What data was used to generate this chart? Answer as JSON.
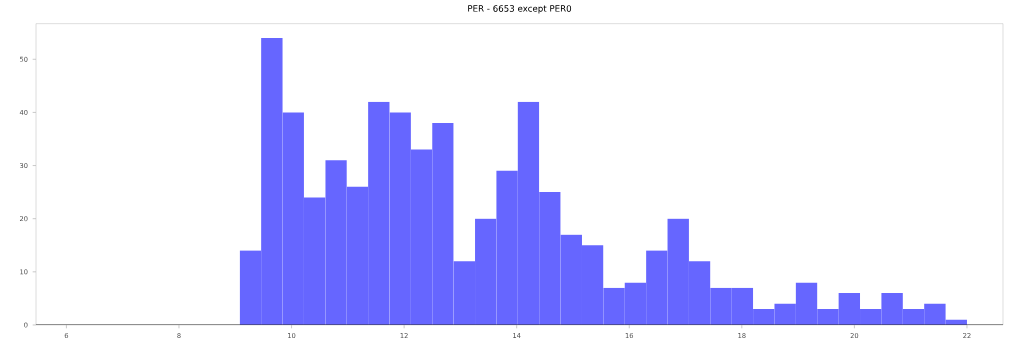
{
  "chart_data": {
    "type": "histogram",
    "title": "PER - 6653 except PER0",
    "bins": [
      9.08,
      9.46,
      9.84,
      10.22,
      10.6,
      10.98,
      11.36,
      11.74,
      12.12,
      12.5,
      12.88,
      13.26,
      13.64,
      14.02,
      14.4,
      14.78,
      15.16,
      15.54,
      15.92,
      16.3,
      16.68,
      17.06,
      17.44,
      17.82,
      18.2,
      18.58,
      18.96,
      19.34,
      19.72,
      20.1,
      20.48,
      20.86,
      21.24,
      21.62,
      22.0
    ],
    "values": [
      14,
      54,
      40,
      24,
      31,
      26,
      42,
      40,
      33,
      38,
      12,
      20,
      29,
      42,
      25,
      17,
      15,
      7,
      8,
      14,
      20,
      12,
      7,
      7,
      3,
      4,
      8,
      3,
      6,
      3,
      6,
      3,
      4,
      1
    ],
    "color": "#6666ff",
    "xlim": [
      5.46,
      22.64
    ],
    "ylim": [
      0,
      56.7
    ],
    "xticks": [
      6,
      8,
      10,
      12,
      14,
      16,
      18,
      20,
      22
    ],
    "yticks": [
      0,
      10,
      20,
      30,
      40,
      50
    ],
    "grid": false
  }
}
